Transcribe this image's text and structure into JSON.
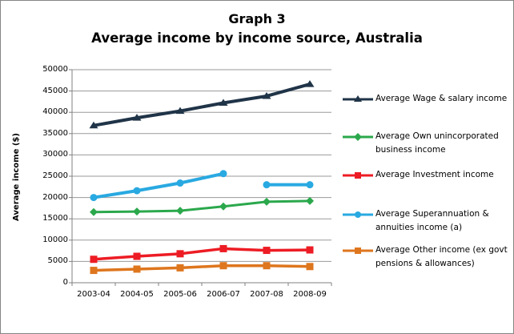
{
  "title": {
    "line1": "Graph 3",
    "line2": "Average income by income source, Australia"
  },
  "chart_data": {
    "type": "line",
    "title": "Graph 3 - Average income by income source, Australia",
    "xlabel": "",
    "ylabel": "Average income ($)",
    "ylim": [
      0,
      50000
    ],
    "y_tick_step": 5000,
    "y_ticks": [
      0,
      5000,
      10000,
      15000,
      20000,
      25000,
      30000,
      35000,
      40000,
      45000,
      50000
    ],
    "grid": true,
    "legend_position": "right",
    "categories": [
      "2003-04",
      "2004-05",
      "2005-06",
      "2006-07",
      "2007-08",
      "2008-09"
    ],
    "series": [
      {
        "id": "wage-salary",
        "name": "Average Wage & salary income",
        "color": "#203448",
        "marker": "triangle",
        "stroke_width": 4,
        "values": [
          36900,
          38700,
          40300,
          42200,
          43800,
          46600
        ]
      },
      {
        "id": "own-business",
        "name": "Average Own unincorporated business income",
        "color": "#2BA84C",
        "marker": "diamond",
        "stroke_width": 3,
        "values": [
          16600,
          16700,
          16900,
          17900,
          19000,
          19200
        ]
      },
      {
        "id": "investment",
        "name": "Average Investment income",
        "color": "#ED1C24",
        "marker": "square",
        "stroke_width": 3.5,
        "values": [
          5500,
          6200,
          6800,
          8000,
          7600,
          7700
        ]
      },
      {
        "id": "superannuation",
        "name": "Average Superannuation & annuities income (a)",
        "color": "#29A9E1",
        "marker": "circle",
        "stroke_width": 4,
        "values": [
          20000,
          21600,
          23400,
          25600,
          23000,
          23000
        ],
        "line_gaps_after_index": [
          3
        ]
      },
      {
        "id": "other-income",
        "name": "Average Other income (ex govt pensions & allowances)",
        "color": "#DE761E",
        "marker": "square",
        "stroke_width": 3.5,
        "values": [
          2900,
          3200,
          3500,
          4000,
          4000,
          3800
        ]
      }
    ]
  },
  "legend": {
    "items": [
      {
        "series_index": 0,
        "lines": [
          "Average Wage & salary income"
        ]
      },
      {
        "series_index": 1,
        "lines": [
          "Average Own unincorporated",
          "business income"
        ]
      },
      {
        "series_index": 2,
        "lines": [
          "Average Investment income"
        ]
      },
      {
        "series_index": 3,
        "lines": [
          "Average Superannuation &",
          "annuities income (a)"
        ]
      },
      {
        "series_index": 4,
        "lines": [
          "Average Other income (ex govt",
          "pensions & allowances)"
        ]
      }
    ]
  },
  "colors": {
    "gridline": "#9A9A9A",
    "axis": "#808080",
    "text": "#000000",
    "background": "#FFFFFF"
  }
}
